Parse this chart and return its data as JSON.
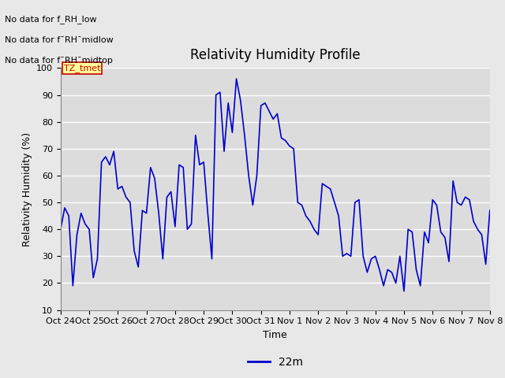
{
  "title": "Relativity Humidity Profile",
  "ylabel": "Relativity Humidity (%)",
  "xlabel": "Time",
  "ylim": [
    10,
    100
  ],
  "yticks": [
    10,
    20,
    30,
    40,
    50,
    60,
    70,
    80,
    90,
    100
  ],
  "line_color": "#0000cc",
  "line_width": 1.2,
  "bg_color": "#e8e8e8",
  "plot_bg_color": "#dcdcdc",
  "legend_label": "22m",
  "legend_line_color": "#0000cc",
  "annotations": [
    "No data for f_RH_low",
    "No data for f¯RH¯midlow",
    "No data for f¯RH¯midtop"
  ],
  "tz_label": "TZ_tmet",
  "tz_label_color": "#cc0000",
  "tz_box_color": "#ffff99",
  "tick_labels": [
    "Oct 24",
    "Oct 25",
    "Oct 26",
    "Oct 27",
    "Oct 28",
    "Oct 29",
    "Oct 30",
    "Oct 31",
    "Nov 1",
    "Nov 2",
    "Nov 3",
    "Nov 4",
    "Nov 5",
    "Nov 6",
    "Nov 7",
    "Nov 8"
  ],
  "humidity_data": [
    40,
    48,
    45,
    19,
    38,
    46,
    42,
    40,
    22,
    29,
    65,
    67,
    64,
    69,
    55,
    56,
    52,
    50,
    32,
    26,
    47,
    46,
    63,
    59,
    46,
    29,
    52,
    54,
    41,
    64,
    63,
    40,
    42,
    75,
    64,
    65,
    46,
    29,
    90,
    91,
    69,
    87,
    76,
    96,
    88,
    75,
    60,
    49,
    60,
    86,
    87,
    84,
    81,
    83,
    74,
    73,
    71,
    70,
    50,
    49,
    45,
    43,
    40,
    38,
    57,
    56,
    55,
    50,
    45,
    30,
    31,
    30,
    50,
    51,
    30,
    24,
    29,
    30,
    25,
    19,
    25,
    24,
    20,
    30,
    17,
    40,
    39,
    25,
    19,
    39,
    35,
    51,
    49,
    39,
    37,
    28,
    58,
    50,
    49,
    52,
    51,
    43,
    40,
    38,
    27,
    47
  ],
  "figsize": [
    6.4,
    4.8
  ],
  "dpi": 100,
  "grid_color": "#ffffff",
  "grid_linewidth": 1.0,
  "title_fontsize": 12,
  "axis_label_fontsize": 9,
  "tick_fontsize": 8,
  "annotation_fontsize": 8,
  "legend_fontsize": 10
}
